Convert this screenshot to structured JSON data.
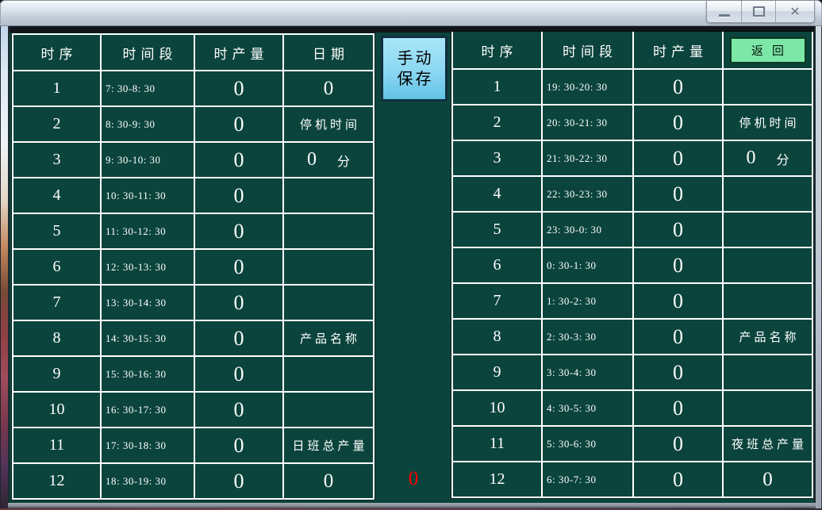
{
  "window": {
    "title": "",
    "controls": {
      "minimize": "minimize",
      "maximize": "maximize",
      "close_glyph": "✕"
    }
  },
  "colors": {
    "client_background": "#0b443c",
    "cell_border": "#ffffff",
    "save_button_blue": "#8bd7f2",
    "return_button_green": "#7de7a7",
    "alert_red": "#ff0000",
    "text_white": "#ffffff"
  },
  "buttons": {
    "manual_save_line1": "手动",
    "manual_save_line2": "保存",
    "return_label": "返回"
  },
  "status": {
    "middle_red_value": "0"
  },
  "left_table": {
    "headers": [
      "时序",
      "时间段",
      "时产量",
      "日期"
    ],
    "rows": [
      {
        "seq": "1",
        "period": "7: 30-8: 30",
        "output": "0",
        "col4": "0"
      },
      {
        "seq": "2",
        "period": "8: 30-9: 30",
        "output": "0",
        "col4": "停机时间"
      },
      {
        "seq": "3",
        "period": "9: 30-10: 30",
        "output": "0",
        "col4": "0",
        "col4_unit": "分"
      },
      {
        "seq": "4",
        "period": "10: 30-11: 30",
        "output": "0",
        "col4": ""
      },
      {
        "seq": "5",
        "period": "11: 30-12: 30",
        "output": "0",
        "col4": ""
      },
      {
        "seq": "6",
        "period": "12: 30-13: 30",
        "output": "0",
        "col4": ""
      },
      {
        "seq": "7",
        "period": "13: 30-14: 30",
        "output": "0",
        "col4": ""
      },
      {
        "seq": "8",
        "period": "14: 30-15: 30",
        "output": "0",
        "col4": "产品名称"
      },
      {
        "seq": "9",
        "period": "15: 30-16: 30",
        "output": "0",
        "col4": ""
      },
      {
        "seq": "10",
        "period": "16: 30-17: 30",
        "output": "0",
        "col4": ""
      },
      {
        "seq": "11",
        "period": "17: 30-18: 30",
        "output": "0",
        "col4": "日班总产量"
      },
      {
        "seq": "12",
        "period": "18: 30-19: 30",
        "output": "0",
        "col4": "0"
      }
    ]
  },
  "right_table": {
    "headers": [
      "时序",
      "时间段",
      "时产量",
      ""
    ],
    "rows": [
      {
        "seq": "1",
        "period": "19: 30-20: 30",
        "output": "0",
        "col4": ""
      },
      {
        "seq": "2",
        "period": "20: 30-21: 30",
        "output": "0",
        "col4": "停机时间"
      },
      {
        "seq": "3",
        "period": "21: 30-22: 30",
        "output": "0",
        "col4": "0",
        "col4_unit": "分"
      },
      {
        "seq": "4",
        "period": "22: 30-23: 30",
        "output": "0",
        "col4": ""
      },
      {
        "seq": "5",
        "period": "23: 30-0: 30",
        "output": "0",
        "col4": ""
      },
      {
        "seq": "6",
        "period": "0: 30-1: 30",
        "output": "0",
        "col4": ""
      },
      {
        "seq": "7",
        "period": "1: 30-2: 30",
        "output": "0",
        "col4": ""
      },
      {
        "seq": "8",
        "period": "2: 30-3: 30",
        "output": "0",
        "col4": "产品名称"
      },
      {
        "seq": "9",
        "period": "3: 30-4: 30",
        "output": "0",
        "col4": ""
      },
      {
        "seq": "10",
        "period": "4: 30-5: 30",
        "output": "0",
        "col4": ""
      },
      {
        "seq": "11",
        "period": "5: 30-6: 30",
        "output": "0",
        "col4": "夜班总产量"
      },
      {
        "seq": "12",
        "period": "6: 30-7: 30",
        "output": "0",
        "col4": "0"
      }
    ]
  }
}
